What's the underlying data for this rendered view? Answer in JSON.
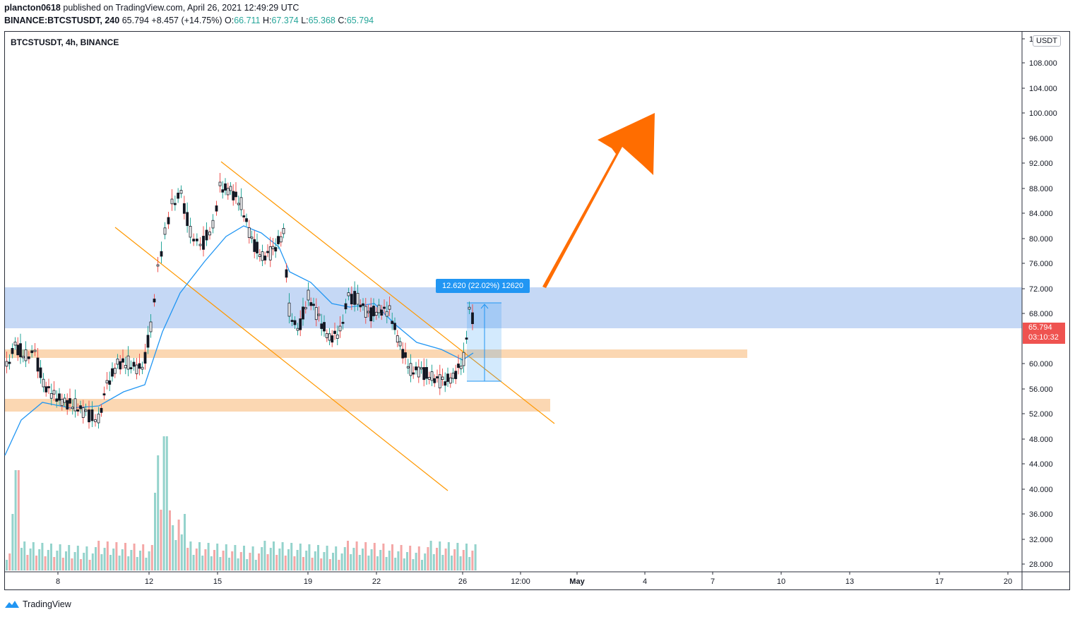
{
  "header": {
    "publisher": "plancton0618",
    "published_text": "published on TradingView.com, April 26, 2021 12:49:29 UTC",
    "symbol_full": "BINANCE:BTCSTUSDT, 240",
    "last": "65.794",
    "change": "+8.457 (+14.75%)",
    "open_label": "O:",
    "open": "66.711",
    "high_label": "H:",
    "high": "67.374",
    "low_label": "L:",
    "low": "65.368",
    "close_label": "C:",
    "close": "65.794"
  },
  "chart": {
    "title": "BTCSTUSDT, 4h, BINANCE",
    "currency": "USDT",
    "price_tag": {
      "price": "65.794",
      "countdown": "03:10:32"
    },
    "measure_label": "12.620 (22.02%) 12620",
    "y_axis_labels": [
      "1",
      "108.000",
      "104.000",
      "100.000",
      "96.000",
      "92.000",
      "88.000",
      "84.000",
      "80.000",
      "76.000",
      "72.000",
      "68.000",
      "60.000",
      "56.000",
      "52.000",
      "48.000",
      "44.000",
      "40.000",
      "36.000",
      "32.000",
      "28.000"
    ],
    "x_axis_labels": [
      "8",
      "12",
      "15",
      "19",
      "22",
      "26",
      "12:00",
      "May",
      "4",
      "7",
      "10",
      "13",
      "17",
      "20"
    ]
  },
  "colors": {
    "up": "#26a69a",
    "down": "#ef5350",
    "candle_body": "#131722",
    "ma": "#2196f3",
    "channel": "#ff9800",
    "zone_blue": "#c5d8f5",
    "zone_orange": "#fbd7b2",
    "arrow": "#ff6d00"
  },
  "footer": {
    "brand": "TradingView"
  }
}
